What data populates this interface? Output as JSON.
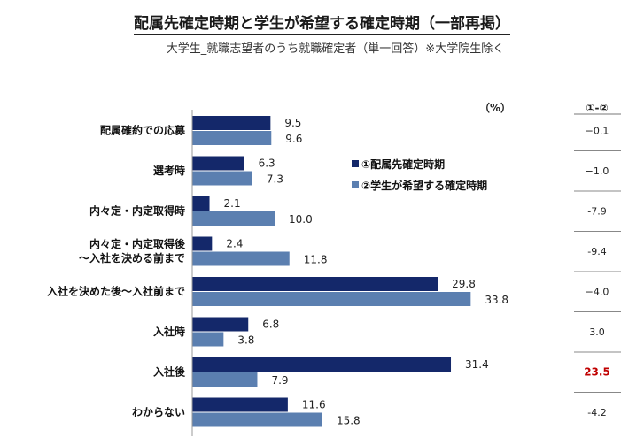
{
  "chart_data": {
    "type": "bar",
    "orientation": "horizontal",
    "title": "配属先確定時期と学生が希望する確定時期（一部再掲）",
    "subtitle": "大学生_就職志望者のうち就職確定者（単一回答）※大学院生除く",
    "unit": "（%）",
    "diff_header": "①-②",
    "categories": [
      [
        "配属確約での応募"
      ],
      [
        "選考時"
      ],
      [
        "内々定・内定取得時"
      ],
      [
        "内々定・内定取得後",
        "～入社を決める前まで"
      ],
      [
        "入社を決めた後～入社前まで"
      ],
      [
        "入社時"
      ],
      [
        "入社後"
      ],
      [
        "わからない"
      ]
    ],
    "series": [
      {
        "name": "①配属先確定時期",
        "values": [
          9.5,
          6.3,
          2.1,
          2.4,
          29.8,
          6.8,
          31.4,
          11.6
        ],
        "labels": [
          "9.5",
          "6.3",
          "2.1",
          "2.4",
          "29.8",
          "6.8",
          "31.4",
          "11.6"
        ]
      },
      {
        "name": "②学生が希望する確定時期",
        "values": [
          9.6,
          7.3,
          10.0,
          11.8,
          33.8,
          3.8,
          7.9,
          15.8
        ],
        "labels": [
          "9.6",
          "7.3",
          "10.0",
          "11.8",
          "33.8",
          "3.8",
          "7.9",
          "15.8"
        ]
      }
    ],
    "differences": [
      "−0.1",
      "−1.0",
      "-7.9",
      "-9.4",
      "−4.0",
      "3.0",
      "23.5",
      "-4.2"
    ],
    "highlight_index": 6,
    "legend_position": "center-right",
    "colors": {
      "series1": "#14286a",
      "series2": "#5b7fb0",
      "highlight": "#c00000",
      "axis": "#999999"
    }
  }
}
